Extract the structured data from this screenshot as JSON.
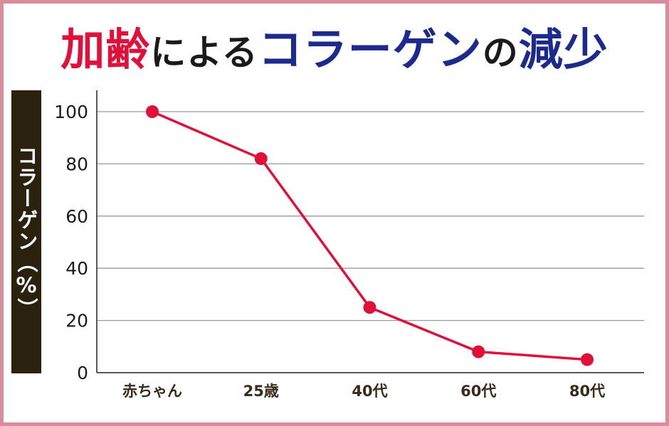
{
  "title": {
    "part1": "加齢",
    "part2": "による",
    "part3": "コラーゲン",
    "part4": "の",
    "part5": "減少"
  },
  "colors": {
    "frame": "#d98c9c",
    "accent_red": "#e0103a",
    "accent_navy": "#1b2a8c",
    "ylabel_bg": "#2a220e",
    "line": "#e0103a",
    "grid": "#9a9a9a"
  },
  "chart_data": {
    "type": "line",
    "title": "加齢によるコラーゲンの減少",
    "ylabel": "コラーゲン（%）",
    "xlabel": "",
    "categories": [
      "赤ちゃん",
      "25歳",
      "40代",
      "60代",
      "80代"
    ],
    "values": [
      100,
      82,
      25,
      8,
      5
    ],
    "ylim": [
      0,
      100
    ],
    "yticks": [
      0,
      20,
      40,
      60,
      80,
      100
    ],
    "grid": true,
    "legend": "none"
  }
}
